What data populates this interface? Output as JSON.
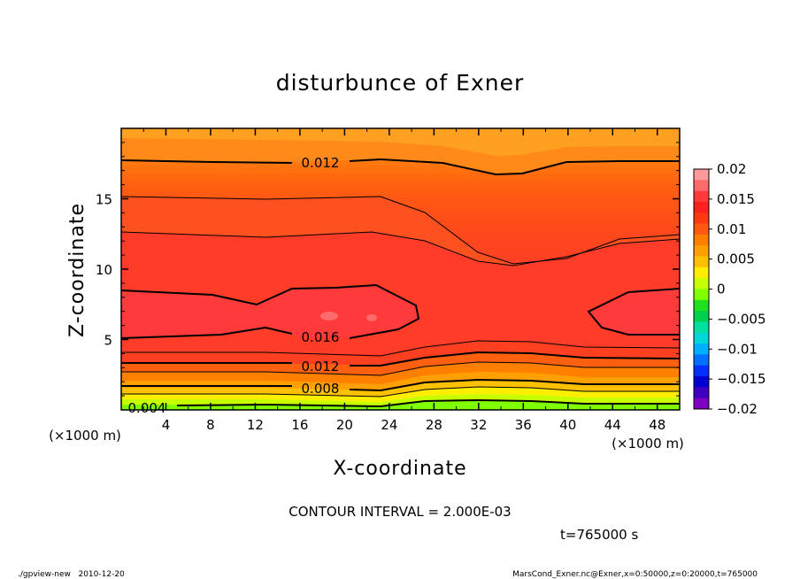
{
  "chart_data": {
    "type": "heatmap",
    "title": "disturbunce of Exner",
    "xlabel": "X-coordinate",
    "ylabel": "Z-coordinate",
    "x_unit": "(×1000 m)",
    "y_unit": "(×1000 m)",
    "x_ticks": [
      4,
      8,
      12,
      16,
      20,
      24,
      28,
      32,
      36,
      40,
      44,
      48
    ],
    "y_ticks": [
      5,
      10,
      15
    ],
    "xlim": [
      0,
      50
    ],
    "ylim": [
      0,
      20
    ],
    "contour_labels": [
      {
        "text": "0.012",
        "x": 17.5,
        "z": 17.7
      },
      {
        "text": "0.016",
        "x": 17.5,
        "z": 5.2
      },
      {
        "text": "0.012",
        "x": 17.5,
        "z": 3.0
      },
      {
        "text": "0.008",
        "x": 17.5,
        "z": 1.5
      },
      {
        "text": "0.004",
        "x": 2.5,
        "z": 0.2
      }
    ],
    "colorbar": {
      "ticks": [
        "0.02",
        "0.015",
        "0.01",
        "0.005",
        "0",
        "−0.005",
        "−0.01",
        "−0.015",
        "−0.02"
      ],
      "colors": [
        "#ff9a9a",
        "#ff6a6a",
        "#ff3a3a",
        "#ff2020",
        "#ff3a10",
        "#ff5a10",
        "#ff8000",
        "#ffa000",
        "#ffc000",
        "#ffee00",
        "#c8ff00",
        "#80ff00",
        "#20e020",
        "#00d050",
        "#00e0a0",
        "#00d8d8",
        "#00b0ff",
        "#0070ff",
        "#0030ff",
        "#0000d0",
        "#4000c0",
        "#8000c0"
      ]
    }
  },
  "footer": {
    "contour_interval": "CONTOUR INTERVAL = 2.000E-03",
    "time": "t=765000 s",
    "left_note": "./gpview-new   2010-12-20",
    "right_note": "MarsCond_Exner.nc@Exner,x=0:50000,z=0:20000,t=765000"
  }
}
